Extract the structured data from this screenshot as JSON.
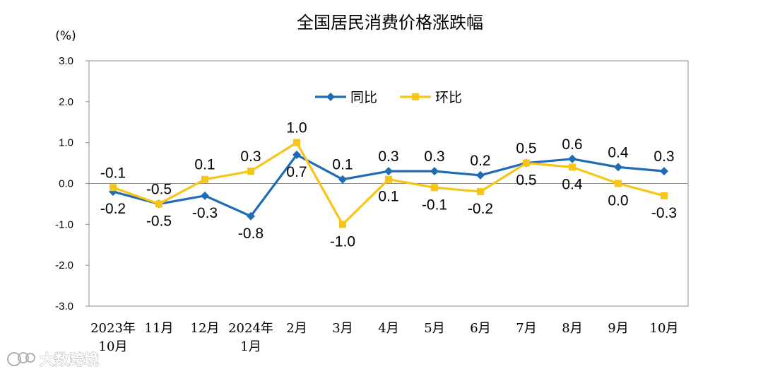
{
  "chart_data": {
    "type": "line",
    "title": "全国居民消费价格涨跌幅",
    "unit": "(%)",
    "ylim": [
      -3.0,
      3.0
    ],
    "yticks": [
      "3.0",
      "2.0",
      "1.0",
      "0.0",
      "-1.0",
      "-2.0",
      "-3.0"
    ],
    "grid": false,
    "legend_position": "top-center",
    "categories": [
      [
        "2023年",
        "10月"
      ],
      [
        "11月"
      ],
      [
        "12月"
      ],
      [
        "2024年",
        "1月"
      ],
      [
        "2月"
      ],
      [
        "3月"
      ],
      [
        "4月"
      ],
      [
        "5月"
      ],
      [
        "6月"
      ],
      [
        "7月"
      ],
      [
        "8月"
      ],
      [
        "9月"
      ],
      [
        "10月"
      ]
    ],
    "series": [
      {
        "name": "同比",
        "color": "#1F6BB5",
        "marker": "diamond",
        "values": [
          -0.2,
          -0.5,
          -0.3,
          -0.8,
          0.7,
          0.1,
          0.3,
          0.3,
          0.2,
          0.5,
          0.6,
          0.4,
          0.3
        ],
        "labels": [
          "-0.2",
          "-0.5",
          "-0.3",
          "-0.8",
          "0.7",
          "0.1",
          "0.3",
          "0.3",
          "0.2",
          "0.5",
          "0.6",
          "0.4",
          "0.3"
        ]
      },
      {
        "name": "环比",
        "color": "#F6C518",
        "marker": "square",
        "values": [
          -0.1,
          -0.5,
          0.1,
          0.3,
          1.0,
          -1.0,
          0.1,
          -0.1,
          -0.2,
          0.5,
          0.4,
          0.0,
          -0.3
        ],
        "labels": [
          "-0.1",
          "-0.5",
          "0.1",
          "0.3",
          "1.0",
          "-1.0",
          "0.1",
          "-0.1",
          "-0.2",
          "0.5",
          "0.4",
          "0.0",
          "-0.3"
        ]
      }
    ]
  },
  "watermark": {
    "text": "大数跨境",
    "icon": "watermark-logo-icon"
  }
}
